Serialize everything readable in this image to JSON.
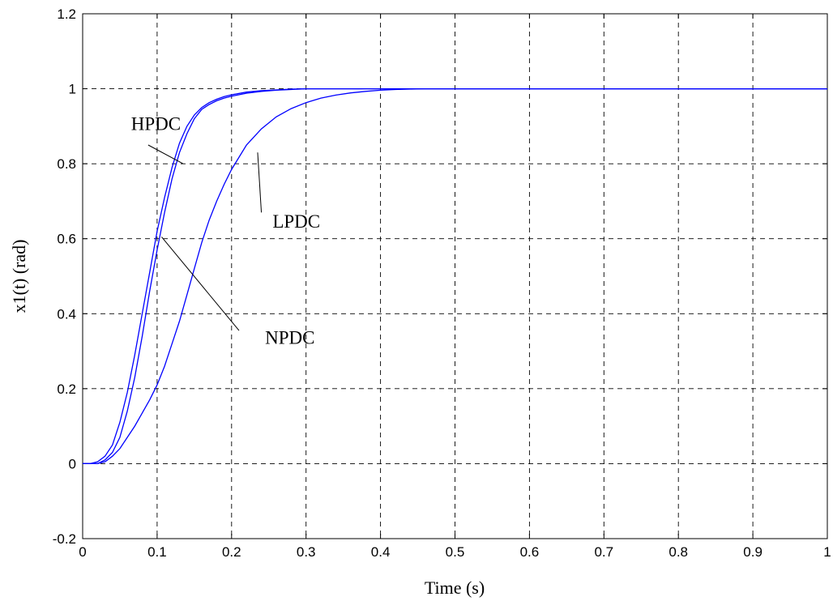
{
  "chart_data": {
    "type": "line",
    "title": "",
    "xlabel": "Time (s)",
    "ylabel": "x1(t) (rad)",
    "xlim": [
      0,
      1
    ],
    "ylim": [
      -0.2,
      1.2
    ],
    "grid": true,
    "line_color": "#0000ff",
    "x_ticks": [
      {
        "value": 0,
        "label": "0"
      },
      {
        "value": 0.1,
        "label": "0.1"
      },
      {
        "value": 0.2,
        "label": "0.2"
      },
      {
        "value": 0.3,
        "label": "0.3"
      },
      {
        "value": 0.4,
        "label": "0.4"
      },
      {
        "value": 0.5,
        "label": "0.5"
      },
      {
        "value": 0.6,
        "label": "0.6"
      },
      {
        "value": 0.7,
        "label": "0.7"
      },
      {
        "value": 0.8,
        "label": "0.8"
      },
      {
        "value": 0.9,
        "label": "0.9"
      },
      {
        "value": 1,
        "label": "1"
      }
    ],
    "y_ticks": [
      {
        "value": -0.2,
        "label": "-0.2"
      },
      {
        "value": 0,
        "label": "0"
      },
      {
        "value": 0.2,
        "label": "0.2"
      },
      {
        "value": 0.4,
        "label": "0.4"
      },
      {
        "value": 0.6,
        "label": "0.6"
      },
      {
        "value": 0.8,
        "label": "0.8"
      },
      {
        "value": 1,
        "label": "1"
      },
      {
        "value": 1.2,
        "label": "1.2"
      }
    ],
    "series": [
      {
        "name": "HPDC",
        "x": [
          0,
          0.01,
          0.02,
          0.03,
          0.04,
          0.05,
          0.06,
          0.07,
          0.08,
          0.09,
          0.1,
          0.11,
          0.12,
          0.13,
          0.14,
          0.15,
          0.16,
          0.17,
          0.18,
          0.19,
          0.2,
          0.22,
          0.24,
          0.26,
          0.28,
          0.3,
          0.4,
          0.5,
          0.6,
          0.7,
          0.8,
          0.9,
          1.0
        ],
        "y": [
          0,
          0,
          0.005,
          0.02,
          0.05,
          0.11,
          0.19,
          0.29,
          0.4,
          0.51,
          0.62,
          0.71,
          0.79,
          0.855,
          0.9,
          0.93,
          0.95,
          0.963,
          0.972,
          0.979,
          0.984,
          0.991,
          0.995,
          0.997,
          0.999,
          1.0,
          1.0,
          1.0,
          1.0,
          1.0,
          1.0,
          1.0,
          1.0
        ]
      },
      {
        "name": "NPDC",
        "x": [
          0,
          0.01,
          0.02,
          0.03,
          0.04,
          0.05,
          0.06,
          0.07,
          0.08,
          0.09,
          0.1,
          0.11,
          0.12,
          0.13,
          0.14,
          0.15,
          0.16,
          0.17,
          0.18,
          0.19,
          0.2,
          0.22,
          0.24,
          0.26,
          0.28,
          0.3,
          0.4,
          0.5,
          0.6,
          0.7,
          0.8,
          0.9,
          1.0
        ],
        "y": [
          0,
          0,
          0,
          0.01,
          0.03,
          0.07,
          0.14,
          0.23,
          0.34,
          0.46,
          0.57,
          0.67,
          0.76,
          0.83,
          0.88,
          0.92,
          0.945,
          0.958,
          0.968,
          0.975,
          0.98,
          0.988,
          0.993,
          0.996,
          0.998,
          1.0,
          1.0,
          1.0,
          1.0,
          1.0,
          1.0,
          1.0,
          1.0
        ]
      },
      {
        "name": "LPDC",
        "x": [
          0,
          0.02,
          0.03,
          0.04,
          0.05,
          0.06,
          0.07,
          0.08,
          0.09,
          0.1,
          0.11,
          0.12,
          0.13,
          0.14,
          0.15,
          0.16,
          0.17,
          0.18,
          0.19,
          0.2,
          0.22,
          0.24,
          0.26,
          0.28,
          0.3,
          0.32,
          0.34,
          0.36,
          0.38,
          0.4,
          0.42,
          0.44,
          0.46,
          0.5,
          0.6,
          0.7,
          0.8,
          0.9,
          1.0
        ],
        "y": [
          0,
          0,
          0.005,
          0.02,
          0.04,
          0.07,
          0.1,
          0.135,
          0.17,
          0.21,
          0.26,
          0.32,
          0.38,
          0.45,
          0.52,
          0.59,
          0.65,
          0.7,
          0.745,
          0.785,
          0.85,
          0.893,
          0.925,
          0.947,
          0.963,
          0.975,
          0.983,
          0.989,
          0.993,
          0.996,
          0.998,
          0.999,
          1.0,
          1.0,
          1.0,
          1.0,
          1.0,
          1.0,
          1.0
        ]
      }
    ],
    "annotations": [
      {
        "text": "HPDC",
        "x": 0.065,
        "y": 0.89,
        "arrow_to": [
          0.135,
          0.8
        ],
        "arrow_from": [
          0.088,
          0.85
        ]
      },
      {
        "text": "NPDC",
        "x": 0.245,
        "y": 0.32,
        "arrow_to": [
          0.106,
          0.605
        ],
        "arrow_from": [
          0.21,
          0.355
        ]
      },
      {
        "text": "LPDC",
        "x": 0.255,
        "y": 0.63,
        "arrow_to": [
          0.235,
          0.83
        ],
        "arrow_from": [
          0.24,
          0.67
        ]
      }
    ]
  }
}
